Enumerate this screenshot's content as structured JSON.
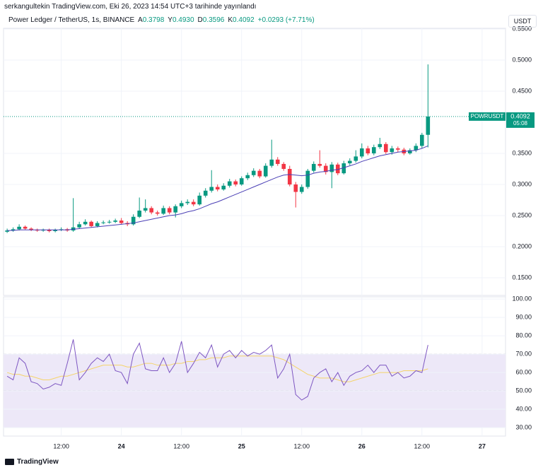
{
  "header": {
    "published": "serkangultekin TradingView.com, Eki 26, 2023 14:54 UTC+3 tarihinde yayınlandı",
    "currency": "USDT",
    "brand": "TradingView"
  },
  "legend": {
    "symbol": "Power Ledger / TetherUS, 1s, BINANCE",
    "open_label": "A",
    "open": "0.3798",
    "high_label": "Y",
    "high": "0.4930",
    "low_label": "D",
    "low": "0.3596",
    "close_label": "K",
    "close": "0.4092",
    "change": "+0.0293 (+7.71%)"
  },
  "chart_data": [
    {
      "type": "candlestick",
      "categories": [
        null,
        null,
        null,
        null,
        null,
        null,
        null,
        null,
        null,
        null,
        null,
        null,
        null,
        null,
        null,
        null,
        null,
        null,
        null,
        null,
        null,
        null,
        null,
        null,
        null,
        null,
        null,
        null,
        null,
        null,
        null,
        null,
        null,
        null,
        null,
        null,
        null,
        null,
        null,
        null,
        null,
        null,
        null,
        null,
        null,
        null,
        null,
        null,
        null,
        null,
        null,
        null,
        null,
        null,
        null,
        null,
        null,
        null,
        null,
        null,
        null,
        null,
        null,
        null,
        null,
        null,
        null,
        null,
        null,
        null,
        null
      ],
      "open": [
        0.224,
        0.226,
        0.228,
        0.232,
        0.229,
        0.227,
        0.226,
        0.227,
        0.225,
        0.227,
        0.228,
        0.226,
        0.231,
        0.236,
        0.24,
        0.233,
        0.238,
        0.239,
        0.24,
        0.242,
        0.238,
        0.236,
        0.248,
        0.258,
        0.262,
        0.255,
        0.253,
        0.262,
        0.255,
        0.265,
        0.27,
        0.272,
        0.268,
        0.282,
        0.29,
        0.296,
        0.292,
        0.298,
        0.305,
        0.3,
        0.31,
        0.315,
        0.322,
        0.313,
        0.33,
        0.34,
        0.333,
        0.325,
        0.3,
        0.288,
        0.296,
        0.322,
        0.333,
        0.33,
        0.32,
        0.332,
        0.318,
        0.334,
        0.338,
        0.345,
        0.358,
        0.35,
        0.36,
        0.365,
        0.352,
        0.358,
        0.356,
        0.35,
        0.355,
        0.362,
        0.3798
      ],
      "high": [
        0.229,
        0.231,
        0.236,
        0.234,
        0.231,
        0.229,
        0.229,
        0.229,
        0.229,
        0.231,
        0.23,
        0.278,
        0.24,
        0.244,
        0.242,
        0.241,
        0.242,
        0.243,
        0.245,
        0.246,
        0.241,
        0.252,
        0.279,
        0.276,
        0.265,
        0.258,
        0.266,
        0.265,
        0.268,
        0.274,
        0.276,
        0.276,
        0.287,
        0.294,
        0.323,
        0.3,
        0.302,
        0.309,
        0.308,
        0.313,
        0.319,
        0.326,
        0.325,
        0.334,
        0.372,
        0.344,
        0.336,
        0.33,
        0.304,
        0.3,
        0.325,
        0.337,
        0.355,
        0.334,
        0.336,
        0.335,
        0.338,
        0.342,
        0.355,
        0.366,
        0.362,
        0.364,
        0.375,
        0.368,
        0.362,
        0.361,
        0.359,
        0.358,
        0.366,
        0.383,
        0.493
      ],
      "low": [
        0.222,
        0.224,
        0.226,
        0.227,
        0.225,
        0.224,
        0.224,
        0.223,
        0.223,
        0.225,
        0.224,
        0.224,
        0.229,
        0.234,
        0.231,
        0.231,
        0.236,
        0.237,
        0.238,
        0.236,
        0.233,
        0.234,
        0.246,
        0.255,
        0.252,
        0.25,
        0.251,
        0.252,
        0.247,
        0.262,
        0.267,
        0.265,
        0.266,
        0.279,
        0.287,
        0.289,
        0.29,
        0.295,
        0.297,
        0.298,
        0.307,
        0.312,
        0.31,
        0.311,
        0.327,
        0.33,
        0.322,
        0.297,
        0.263,
        0.285,
        0.293,
        0.319,
        0.327,
        0.316,
        0.294,
        0.315,
        0.316,
        0.331,
        0.335,
        0.342,
        0.347,
        0.347,
        0.357,
        0.349,
        0.348,
        0.352,
        0.347,
        0.348,
        0.352,
        0.358,
        0.3596
      ],
      "close": [
        0.226,
        0.228,
        0.232,
        0.229,
        0.227,
        0.226,
        0.227,
        0.225,
        0.227,
        0.228,
        0.226,
        0.231,
        0.236,
        0.24,
        0.233,
        0.238,
        0.239,
        0.24,
        0.242,
        0.238,
        0.236,
        0.248,
        0.258,
        0.262,
        0.255,
        0.253,
        0.262,
        0.255,
        0.265,
        0.27,
        0.272,
        0.268,
        0.282,
        0.29,
        0.296,
        0.292,
        0.298,
        0.305,
        0.3,
        0.31,
        0.315,
        0.322,
        0.313,
        0.33,
        0.34,
        0.333,
        0.325,
        0.3,
        0.288,
        0.296,
        0.322,
        0.333,
        0.33,
        0.32,
        0.332,
        0.318,
        0.334,
        0.338,
        0.345,
        0.358,
        0.35,
        0.36,
        0.365,
        0.352,
        0.358,
        0.356,
        0.35,
        0.355,
        0.362,
        0.3798,
        0.4092
      ],
      "up_color": "#089981",
      "down_color": "#f23645",
      "overlay": {
        "color": "#4a3fb5",
        "values": [
          0.226,
          0.226,
          0.227,
          0.227,
          0.227,
          0.227,
          0.227,
          0.227,
          0.227,
          0.227,
          0.227,
          0.228,
          0.229,
          0.23,
          0.231,
          0.232,
          0.233,
          0.234,
          0.235,
          0.236,
          0.237,
          0.238,
          0.24,
          0.242,
          0.244,
          0.246,
          0.248,
          0.25,
          0.251,
          0.253,
          0.256,
          0.258,
          0.261,
          0.265,
          0.269,
          0.272,
          0.276,
          0.28,
          0.284,
          0.288,
          0.292,
          0.296,
          0.3,
          0.304,
          0.308,
          0.312,
          0.315,
          0.316,
          0.315,
          0.314,
          0.315,
          0.318,
          0.32,
          0.321,
          0.323,
          0.324,
          0.327,
          0.33,
          0.333,
          0.337,
          0.34,
          0.343,
          0.346,
          0.348,
          0.35,
          0.352,
          0.353,
          0.354,
          0.355,
          0.358,
          0.362
        ]
      },
      "ylim": [
        0.1216,
        0.5511
      ],
      "yticks": [
        {
          "value": 0.15,
          "label": "0.1500"
        },
        {
          "value": 0.2,
          "label": "0.2000"
        },
        {
          "value": 0.25,
          "label": "0.2500"
        },
        {
          "value": 0.3,
          "label": "0.3000"
        },
        {
          "value": 0.35,
          "label": "0.3500"
        },
        {
          "value": 0.45,
          "label": "0.4500"
        },
        {
          "value": 0.5,
          "label": "0.5000"
        },
        {
          "value": 0.55,
          "label": "0.5500"
        }
      ],
      "xlim": [
        -0.6,
        82.9
      ],
      "grid": true,
      "last_price": {
        "symbol": "POWRUSDT",
        "value": 0.4092,
        "countdown": "05:08",
        "color": "#089981"
      }
    },
    {
      "type": "line",
      "categories": [
        null,
        null,
        null,
        null,
        null,
        null,
        null,
        null,
        null,
        null,
        null,
        null,
        null,
        null,
        null,
        null,
        null,
        null,
        null,
        null,
        null,
        null,
        null,
        null,
        null,
        null,
        null,
        null,
        null,
        null,
        null,
        null,
        null,
        null,
        null,
        null,
        null,
        null,
        null,
        null,
        null,
        null,
        null,
        null,
        null,
        null,
        null,
        null,
        null,
        null,
        null,
        null,
        null,
        null,
        null,
        null,
        null,
        null,
        null,
        null,
        null,
        null,
        null,
        null,
        null,
        null,
        null,
        null,
        null,
        null,
        null
      ],
      "series": [
        {
          "color": "#7e57c2",
          "values": [
            58,
            56,
            68,
            65,
            55,
            54,
            51,
            52,
            54,
            53,
            65,
            78,
            56,
            60,
            65,
            68,
            66,
            70,
            61,
            60,
            54,
            70,
            76,
            62,
            61,
            61,
            68,
            60,
            65,
            77,
            60,
            65,
            71,
            68,
            75,
            63,
            70,
            72,
            68,
            72,
            69,
            71,
            70,
            72,
            75,
            57,
            62,
            70,
            48,
            45,
            47,
            57,
            60,
            62,
            55,
            60,
            53,
            58,
            60,
            61,
            64,
            60,
            64,
            64,
            58,
            60,
            57,
            58,
            61,
            60,
            75
          ]
        },
        {
          "color": "#f5d46a",
          "values": [
            60,
            59,
            59,
            58,
            58,
            57,
            56,
            56,
            57,
            58,
            58,
            59,
            60,
            61,
            62,
            63,
            64,
            64,
            64,
            64,
            63,
            63,
            64,
            65,
            65,
            64,
            64,
            64,
            65,
            65,
            66,
            66,
            67,
            67,
            68,
            68,
            68,
            69,
            69,
            69,
            69,
            69,
            69,
            69,
            69,
            68,
            67,
            65,
            63,
            61,
            59,
            58,
            57,
            57,
            57,
            56,
            55,
            55,
            56,
            57,
            58,
            59,
            60,
            60,
            60,
            60,
            61,
            61,
            61,
            61,
            62
          ]
        }
      ],
      "bands": {
        "upper": 70,
        "middle": 50,
        "lower": 30,
        "fill": "#ede8f8"
      },
      "ylim": [
        25.4,
        101.2
      ],
      "yticks": [
        {
          "value": 30,
          "label": "30.00"
        },
        {
          "value": 40,
          "label": "40.00"
        },
        {
          "value": 50,
          "label": "50.00"
        },
        {
          "value": 60,
          "label": "60.00"
        },
        {
          "value": 70,
          "label": "70.00"
        },
        {
          "value": 80,
          "label": "80.00"
        },
        {
          "value": 90,
          "label": "90.00"
        },
        {
          "value": 100,
          "label": "100.00"
        }
      ],
      "xlim": [
        -0.6,
        82.9
      ],
      "xticks": [
        {
          "value": 9,
          "label": "12:00"
        },
        {
          "value": 19,
          "label": "24"
        },
        {
          "value": 29,
          "label": "12:00"
        },
        {
          "value": 39,
          "label": "25"
        },
        {
          "value": 49,
          "label": "12:00"
        },
        {
          "value": 59,
          "label": "26"
        },
        {
          "value": 69,
          "label": "12:00"
        },
        {
          "value": 79,
          "label": "27"
        }
      ],
      "grid": true
    }
  ]
}
